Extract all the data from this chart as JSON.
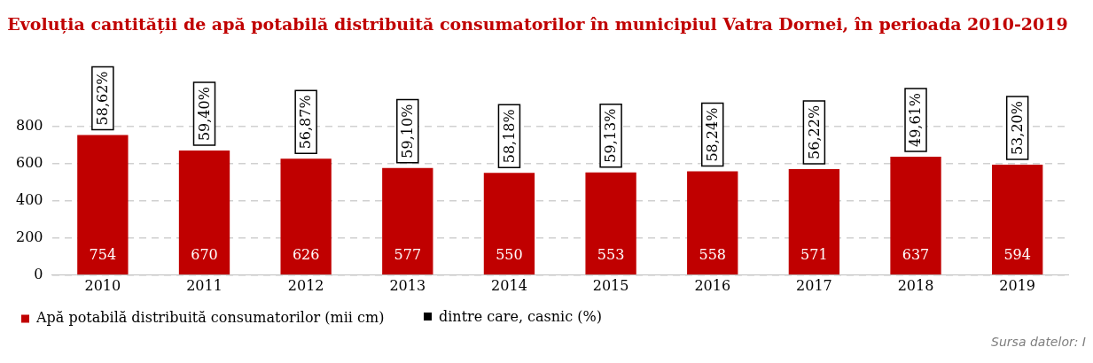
{
  "chart_data": {
    "type": "bar",
    "title": "Evoluția cantității de apă potabilă distribuită consumatorilor în municipiul Vatra Dornei, în perioada 2010-2019",
    "categories": [
      "2010",
      "2011",
      "2012",
      "2013",
      "2014",
      "2015",
      "2016",
      "2017",
      "2018",
      "2019"
    ],
    "series": [
      {
        "name": "Apă potabilă distribuită consumatorilor (mii cm)",
        "color": "#c00000",
        "values": [
          754,
          670,
          626,
          577,
          550,
          553,
          558,
          571,
          637,
          594
        ]
      }
    ],
    "data_labels": true,
    "ylim": [
      0,
      1000
    ],
    "yticks": [
      0,
      200,
      400,
      600,
      800
    ],
    "grid": "y",
    "legend": "bottom left",
    "annotations": [
      "dintre care, casnic (%)",
      "Sursa datelor: I",
      {
        "text": "58,62%",
        "x": "2010",
        "y": 754
      },
      {
        "text": "59,40%",
        "x": "2011",
        "y": 670
      },
      {
        "text": "56,87%",
        "x": "2012",
        "y": 626
      },
      {
        "text": "59,10%",
        "x": "2013",
        "y": 577
      },
      {
        "text": "58,18%",
        "x": "2014",
        "y": 550
      },
      {
        "text": "59,13%",
        "x": "2015",
        "y": 553
      },
      {
        "text": "58,24%",
        "x": "2016",
        "y": 558
      },
      {
        "text": "56,22%",
        "x": "2017",
        "y": 571
      },
      {
        "text": "49,61%",
        "x": "2018",
        "y": 637
      },
      {
        "text": "53,20%",
        "x": "2019",
        "y": 594
      }
    ]
  }
}
